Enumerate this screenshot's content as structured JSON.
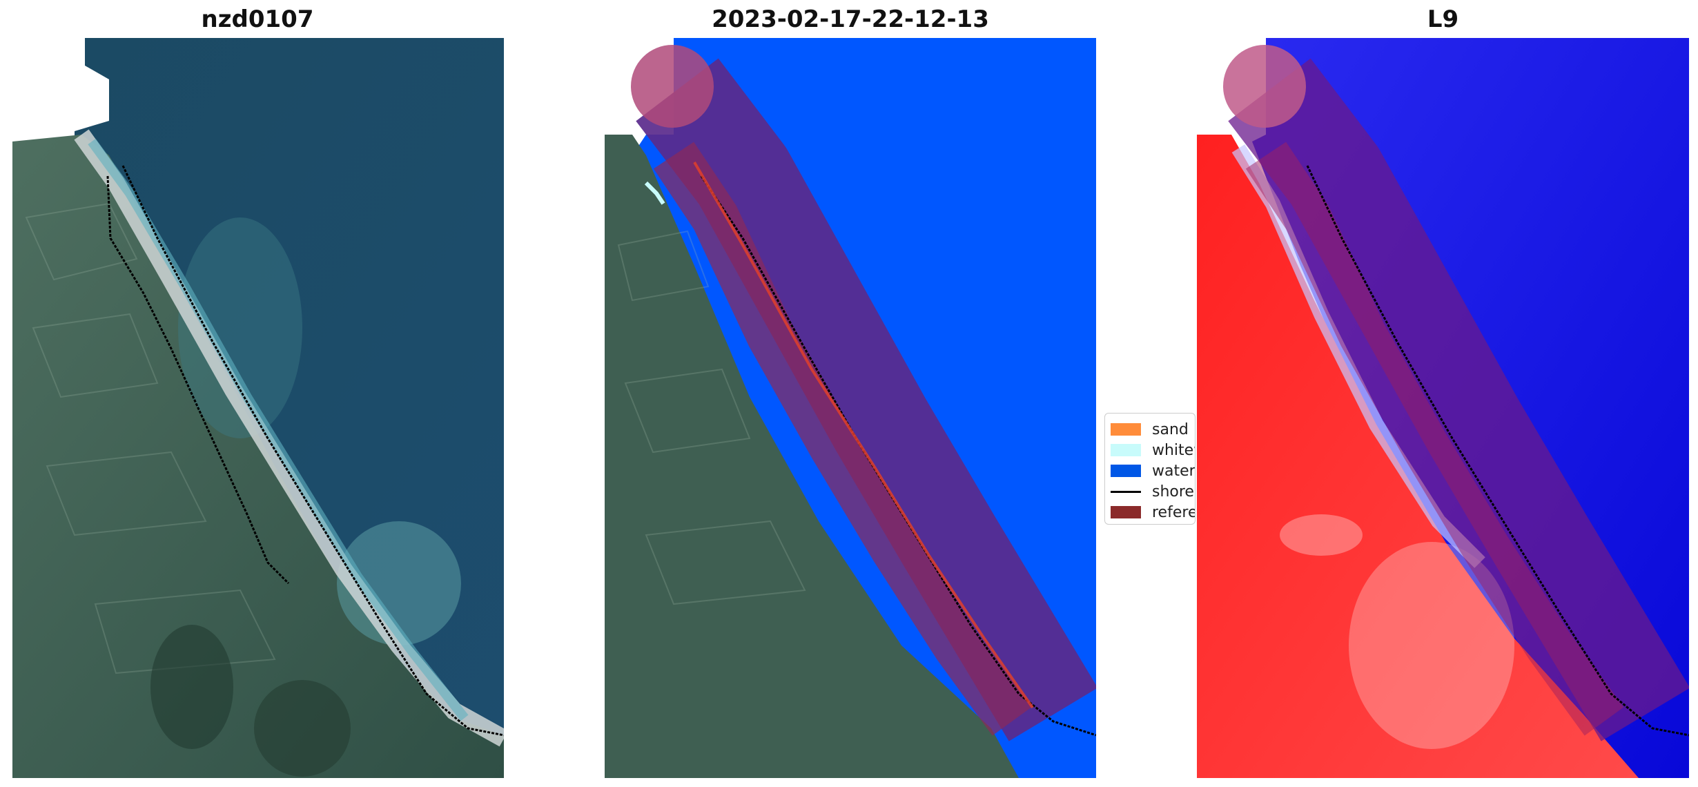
{
  "panels": [
    {
      "title": "nzd0107"
    },
    {
      "title": "2023-02-17-22-12-13"
    },
    {
      "title": "L9"
    }
  ],
  "legend": {
    "items": [
      {
        "label": "sand",
        "color": "#ff8c3a",
        "kind": "patch"
      },
      {
        "label": "whitewater",
        "color": "#c8fbfb",
        "kind": "patch"
      },
      {
        "label": "water",
        "color": "#0057e6",
        "kind": "patch"
      },
      {
        "label": "shoreline",
        "color": "#000000",
        "kind": "line"
      },
      {
        "label": "reference",
        "color": "#8b2a2a",
        "kind": "patch"
      }
    ]
  },
  "colors": {
    "land": "#3f5f52",
    "ocean": "#1f4a6c",
    "beach": "#cfd6d6",
    "water_class": "#0057ff",
    "buffer_purple": "#5a2a8c",
    "reference_mask": "#b04a7a",
    "index_red": "#ff2a2a",
    "index_blue": "#1010e6"
  }
}
